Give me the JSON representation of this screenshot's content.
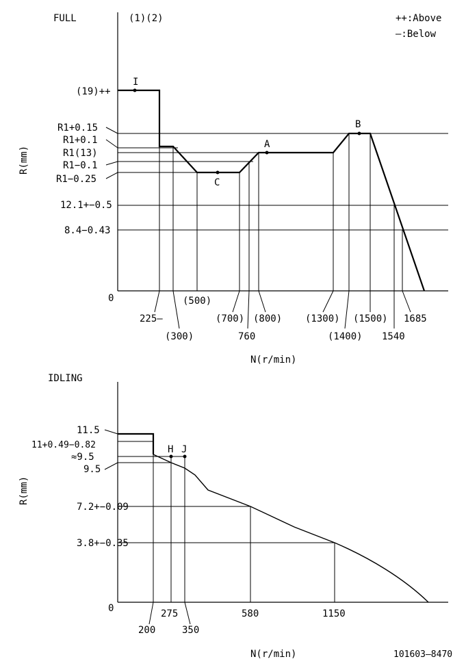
{
  "legend": {
    "above": "++:Above",
    "below": "—:Below"
  },
  "full": {
    "title": "FULL",
    "notes": "(1)(2)",
    "ylabel": "R(mm)",
    "xlabel": "N(r/min)",
    "y_zero": "0",
    "ylabels": [
      "(19)++",
      "R1+0.15",
      "R1+0.1",
      "R1(13)",
      "R1−0.1",
      "R1−0.25",
      "12.1+−0.5",
      "8.4−0.43"
    ],
    "xlabels": [
      "225—",
      "(300)",
      "(500)",
      "(700)",
      "760",
      "(800)",
      "(1300)",
      "(1400)",
      "(1500)",
      "1540",
      "1685"
    ],
    "points": {
      "I": "I",
      "A": "A",
      "B": "B",
      "C": "C"
    }
  },
  "idling": {
    "title": "IDLING",
    "ylabel": "R(mm)",
    "xlabel": "N(r/min)",
    "y_zero": "0",
    "ylabels": [
      "11.5",
      "11+0.49−0.82",
      "≈9.5",
      "9.5",
      "7.2+−0.09",
      "3.8+−0.35"
    ],
    "xlabels": [
      "200",
      "275",
      "350",
      "580",
      "1150"
    ],
    "points": {
      "H": "H",
      "J": "J"
    }
  },
  "doc_number": "101603–8470"
}
